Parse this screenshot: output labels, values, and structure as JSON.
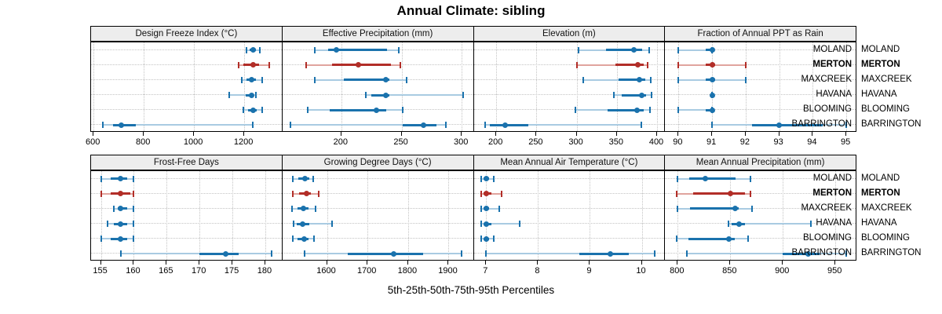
{
  "title": "Annual Climate: sibling",
  "x_axis_title": "5th-25th-50th-75th-95th Percentiles",
  "sites": [
    "MOLAND",
    "MERTON",
    "MAXCREEK",
    "HAVANA",
    "BLOOMING",
    "BARRINGTON"
  ],
  "highlight_site": "MERTON",
  "colors": {
    "series_normal": "#1a72ad",
    "series_normal_light": "#a9cbe2",
    "series_highlight": "#b22e28",
    "series_highlight_light": "#e0a49e",
    "strip_background": "#ededed",
    "gridline": "#c3c3c3"
  },
  "chart_data": {
    "type": "dotplot-percentiles",
    "percentile_labels": [
      "5th",
      "25th",
      "50th",
      "75th",
      "95th"
    ],
    "grid": "dotted",
    "panels": [
      {
        "title": "Design Freeze Index (°C)",
        "row": 0,
        "col": 0,
        "xlim": [
          590,
          1352
        ],
        "ticks": [
          600,
          800,
          1000,
          1200
        ],
        "values": {
          "MOLAND": [
            1210,
            1222,
            1234,
            1246,
            1262
          ],
          "MERTON": [
            1177,
            1197,
            1234,
            1259,
            1300
          ],
          "MAXCREEK": [
            1190,
            1208,
            1228,
            1245,
            1270
          ],
          "HAVANA": [
            1140,
            1206,
            1228,
            1238,
            1246
          ],
          "BLOOMING": [
            1196,
            1214,
            1234,
            1250,
            1271
          ],
          "BARRINGTON": [
            637,
            678,
            709,
            768,
            1234
          ]
        }
      },
      {
        "title": "Effective Precipitation (mm)",
        "row": 0,
        "col": 1,
        "xlim": [
          151,
          310
        ],
        "ticks": [
          200,
          250,
          300
        ],
        "values": {
          "MOLAND": [
            178,
            189,
            196,
            238,
            248
          ],
          "MERTON": [
            171,
            192,
            214,
            241,
            249
          ],
          "MAXCREEK": [
            178,
            202,
            237,
            240,
            254
          ],
          "HAVANA": [
            220,
            225,
            237,
            240,
            301
          ],
          "BLOOMING": [
            172,
            190,
            229,
            237,
            251
          ],
          "BARRINGTON": [
            158,
            251,
            268,
            279,
            287
          ]
        }
      },
      {
        "title": "Elevation (m)",
        "row": 0,
        "col": 2,
        "xlim": [
          172,
          410
        ],
        "ticks": [
          200,
          250,
          300,
          350,
          400
        ],
        "values": {
          "MOLAND": [
            302,
            337,
            371,
            381,
            390
          ],
          "MERTON": [
            300,
            348,
            376,
            383,
            388
          ],
          "MAXCREEK": [
            308,
            352,
            378,
            385,
            392
          ],
          "HAVANA": [
            346,
            356,
            381,
            386,
            393
          ],
          "BLOOMING": [
            298,
            338,
            375,
            383,
            391
          ],
          "BARRINGTON": [
            186,
            192,
            211,
            240,
            380
          ]
        }
      },
      {
        "title": "Fraction of Annual PPT as Rain",
        "row": 0,
        "col": 3,
        "xlim": [
          89.6,
          95.3
        ],
        "ticks": [
          90,
          91,
          92,
          93,
          94,
          95
        ],
        "values": {
          "MOLAND": [
            90,
            90.8,
            91,
            91,
            91
          ],
          "MERTON": [
            90,
            90.8,
            91,
            91.1,
            92
          ],
          "MAXCREEK": [
            90,
            90.8,
            91,
            91.1,
            92
          ],
          "HAVANA": [
            91,
            91,
            91,
            91,
            91
          ],
          "BLOOMING": [
            90,
            90.8,
            91,
            91,
            91
          ],
          "BARRINGTON": [
            91,
            92.2,
            93,
            94.3,
            95
          ]
        }
      },
      {
        "title": "Frost-Free Days",
        "row": 1,
        "col": 0,
        "xlim": [
          153.5,
          182.6
        ],
        "ticks": [
          155,
          160,
          165,
          170,
          175,
          180
        ],
        "values": {
          "MOLAND": [
            155,
            156.5,
            158,
            159,
            160
          ],
          "MERTON": [
            155,
            156.5,
            158,
            159.5,
            160
          ],
          "MAXCREEK": [
            157,
            157.5,
            158,
            159,
            160
          ],
          "HAVANA": [
            156,
            157,
            158,
            159,
            160
          ],
          "BLOOMING": [
            155,
            156.5,
            158,
            159,
            160
          ],
          "BARRINGTON": [
            158,
            170,
            174,
            176,
            181
          ]
        }
      },
      {
        "title": "Growing Degree Days (°C)",
        "row": 1,
        "col": 1,
        "xlim": [
          1490,
          1962
        ],
        "ticks": [
          1600,
          1700,
          1800,
          1900
        ],
        "values": {
          "MOLAND": [
            1515,
            1530,
            1545,
            1556,
            1566
          ],
          "MERTON": [
            1516,
            1532,
            1549,
            1561,
            1580
          ],
          "MAXCREEK": [
            1513,
            1527,
            1542,
            1555,
            1572
          ],
          "HAVANA": [
            1518,
            1526,
            1540,
            1557,
            1612
          ],
          "BLOOMING": [
            1515,
            1528,
            1543,
            1555,
            1567
          ],
          "BARRINGTON": [
            1545,
            1652,
            1765,
            1838,
            1932
          ]
        }
      },
      {
        "title": "Mean Annual Air Temperature (°C)",
        "row": 1,
        "col": 2,
        "xlim": [
          6.76,
          10.45
        ],
        "ticks": [
          7,
          8,
          9,
          10
        ],
        "values": {
          "MOLAND": [
            6.9,
            6.95,
            7.0,
            7.05,
            7.15
          ],
          "MERTON": [
            6.9,
            6.95,
            7.0,
            7.1,
            7.3
          ],
          "MAXCREEK": [
            6.9,
            6.95,
            7.0,
            7.05,
            7.25
          ],
          "HAVANA": [
            6.9,
            6.95,
            7.0,
            7.1,
            7.65
          ],
          "BLOOMING": [
            6.9,
            6.95,
            7.0,
            7.05,
            7.15
          ],
          "BARRINGTON": [
            7.0,
            8.8,
            9.4,
            9.75,
            10.25
          ]
        }
      },
      {
        "title": "Mean Annual Precipitation (mm)",
        "row": 1,
        "col": 3,
        "xlim": [
          788,
          970
        ],
        "ticks": [
          800,
          850,
          900,
          950
        ],
        "values": {
          "MOLAND": [
            800,
            811,
            826,
            855,
            869
          ],
          "MERTON": [
            799,
            815,
            850,
            864,
            869
          ],
          "MAXCREEK": [
            800,
            812,
            855,
            858,
            871
          ],
          "HAVANA": [
            848,
            851,
            858,
            864,
            927
          ],
          "BLOOMING": [
            799,
            810,
            849,
            854,
            867
          ],
          "BARRINGTON": [
            809,
            900,
            924,
            935,
            960
          ]
        }
      }
    ]
  }
}
